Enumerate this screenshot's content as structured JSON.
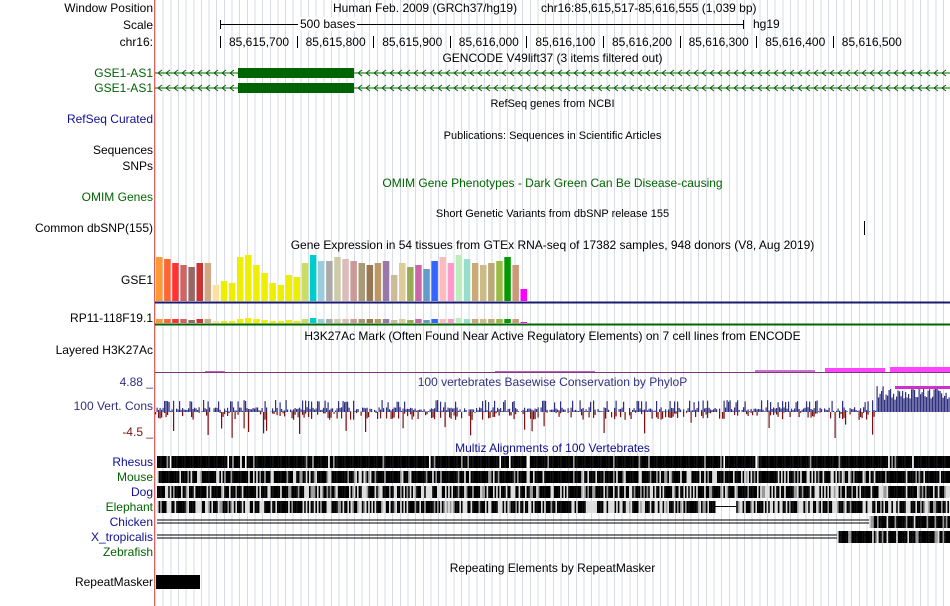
{
  "header": {
    "window_position_label": "Window Position",
    "assembly_text": "Human Feb. 2009 (GRCh37/hg19)",
    "position_text": "chr16:85,615,517-85,616,555 (1,039 bp)",
    "scale_label": "Scale",
    "scale_bar_text": "500 bases",
    "db_label": "hg19",
    "chrom_label": "chr16:",
    "ruler_ticks": [
      "85,615,700",
      "85,615,800",
      "85,615,900",
      "85,616,000",
      "85,616,100",
      "85,616,200",
      "85,616,300",
      "85,616,400",
      "85,616,500"
    ]
  },
  "tracks": {
    "gencode": {
      "title": "GENCODE V49lift37 (3 items filtered out)",
      "items": [
        "GSE1-AS1",
        "GSE1-AS1"
      ]
    },
    "refseq": {
      "title": "RefSeq genes from NCBI",
      "label": "RefSeq Curated"
    },
    "publications": {
      "title": "Publications: Sequences in Scientific Articles",
      "label_sequences": "Sequences",
      "label_snps": "SNPs"
    },
    "omim": {
      "title": "OMIM Gene Phenotypes - Dark Green Can Be Disease-causing",
      "label": "OMIM Genes"
    },
    "dbsnp": {
      "title": "Short Genetic Variants from dbSNP release 155",
      "label": "Common dbSNP(155)"
    },
    "gtex": {
      "title": "Gene Expression in 54 tissues from GTEx RNA-seq of 17382 samples, 948 donors (V8, Aug 2019)",
      "genes": [
        "GSE1",
        "RP11-118F19.1"
      ]
    },
    "h3k27ac": {
      "title": "H3K27Ac Mark (Often Found Near Active Regulatory Elements) on 7 cell lines from ENCODE",
      "label": "Layered H3K27Ac"
    },
    "conservation": {
      "title": "100 vertebrates Basewise Conservation by PhyloP",
      "label": "100 Vert. Cons",
      "max_label": "4.88 _",
      "min_label": "-4.5 _"
    },
    "multiz": {
      "title": "Multiz Alignments of 100 Vertebrates",
      "species": [
        "Rhesus",
        "Mouse",
        "Dog",
        "Elephant",
        "Chicken",
        "X_tropicalis",
        "Zebrafish"
      ]
    },
    "repeatmasker": {
      "title": "Repeating Elements by RepeatMasker",
      "label": "RepeatMasker"
    }
  },
  "colors": {
    "gencode": "#006400",
    "refseq": "#101090",
    "conservation_pos": "#303080",
    "conservation_neg": "#7a1010",
    "h3k27ac_pink": "#ff44ff"
  }
}
